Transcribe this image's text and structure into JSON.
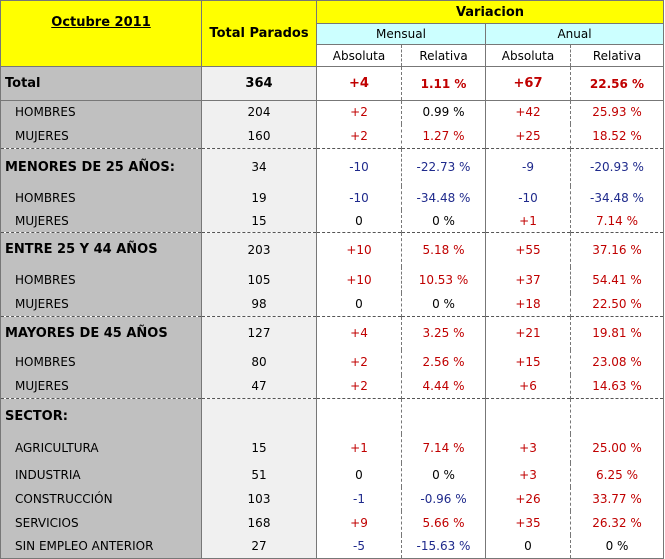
{
  "header": {
    "period": "Octubre 2011",
    "total_label": "Total Parados",
    "variacion": "Variacion",
    "mensual": "Mensual",
    "anual": "Anual",
    "absoluta": "Absoluta",
    "relativa": "Relativa"
  },
  "rows": [
    {
      "label": "Total",
      "total": "364",
      "m_abs": "+4",
      "m_rel": "1.11 %",
      "a_abs": "+67",
      "a_rel": "22.56 %"
    },
    {
      "label": "HOMBRES",
      "total": "204",
      "m_abs": "+2",
      "m_rel": "0.99 %",
      "a_abs": "+42",
      "a_rel": "25.93 %"
    },
    {
      "label": "MUJERES",
      "total": "160",
      "m_abs": "+2",
      "m_rel": "1.27 %",
      "a_abs": "+25",
      "a_rel": "18.52 %"
    },
    {
      "label": "MENORES DE 25 AÑOS:",
      "total": "34",
      "m_abs": "-10",
      "m_rel": "-22.73 %",
      "a_abs": "-9",
      "a_rel": "-20.93 %"
    },
    {
      "label": "HOMBRES",
      "total": "19",
      "m_abs": "-10",
      "m_rel": "-34.48 %",
      "a_abs": "-10",
      "a_rel": "-34.48 %"
    },
    {
      "label": "MUJERES",
      "total": "15",
      "m_abs": "0",
      "m_rel": "0 %",
      "a_abs": "+1",
      "a_rel": "7.14 %"
    },
    {
      "label": "ENTRE 25 Y 44 AÑOS",
      "total": "203",
      "m_abs": "+10",
      "m_rel": "5.18 %",
      "a_abs": "+55",
      "a_rel": "37.16 %"
    },
    {
      "label": "HOMBRES",
      "total": "105",
      "m_abs": "+10",
      "m_rel": "10.53 %",
      "a_abs": "+37",
      "a_rel": "54.41 %"
    },
    {
      "label": "MUJERES",
      "total": "98",
      "m_abs": "0",
      "m_rel": "0 %",
      "a_abs": "+18",
      "a_rel": "22.50 %"
    },
    {
      "label": "MAYORES DE 45 AÑOS",
      "total": "127",
      "m_abs": "+4",
      "m_rel": "3.25 %",
      "a_abs": "+21",
      "a_rel": "19.81 %"
    },
    {
      "label": "HOMBRES",
      "total": "80",
      "m_abs": "+2",
      "m_rel": "2.56 %",
      "a_abs": "+15",
      "a_rel": "23.08 %"
    },
    {
      "label": "MUJERES",
      "total": "47",
      "m_abs": "+2",
      "m_rel": "4.44 %",
      "a_abs": "+6",
      "a_rel": "14.63 %"
    },
    {
      "label": "SECTOR:",
      "total": "",
      "m_abs": "",
      "m_rel": "",
      "a_abs": "",
      "a_rel": ""
    },
    {
      "label": "AGRICULTURA",
      "total": "15",
      "m_abs": "+1",
      "m_rel": "7.14 %",
      "a_abs": "+3",
      "a_rel": "25.00 %"
    },
    {
      "label": "INDUSTRIA",
      "total": "51",
      "m_abs": "0",
      "m_rel": "0 %",
      "a_abs": "+3",
      "a_rel": "6.25 %"
    },
    {
      "label": "CONSTRUCCIÓN",
      "total": "103",
      "m_abs": "-1",
      "m_rel": "-0.96 %",
      "a_abs": "+26",
      "a_rel": "33.77 %"
    },
    {
      "label": "SERVICIOS",
      "total": "168",
      "m_abs": "+9",
      "m_rel": "5.66 %",
      "a_abs": "+35",
      "a_rel": "26.32 %"
    },
    {
      "label": "SIN EMPLEO ANTERIOR",
      "total": "27",
      "m_abs": "-5",
      "m_rel": "-15.63 %",
      "a_abs": "0",
      "a_rel": "0 %"
    }
  ],
  "colors": {
    "header_yellow": "#ffff00",
    "header_cyan": "#ccffff",
    "label_grey": "#c0c0c0",
    "positive": "#c00000",
    "negative": "#1f2a8c"
  }
}
